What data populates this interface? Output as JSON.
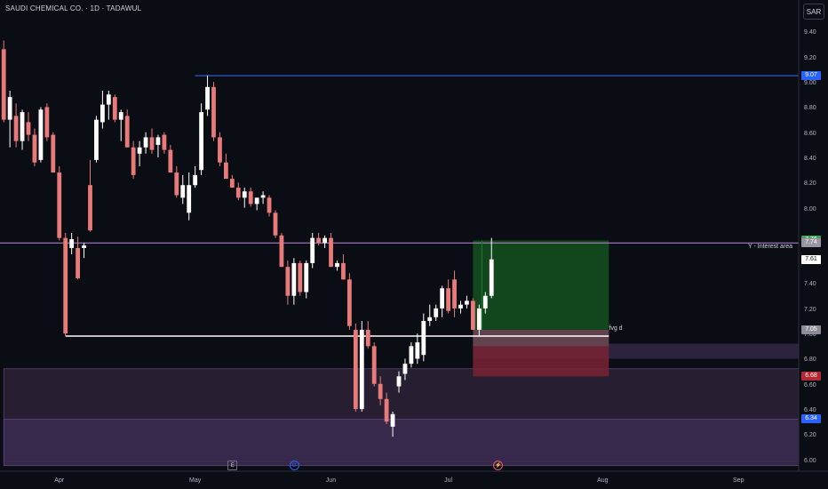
{
  "header": {
    "symbol_title": "SAUDI CHEMICAL CO. · 1D · TADAWUL",
    "currency": "SAR"
  },
  "colors": {
    "background": "#0b0d14",
    "bull": "#ffffff",
    "bear": "#e87a7a",
    "resistance_line": "#3d6df2",
    "interest_line": "#b98ad8",
    "support_line": "#ffffff",
    "target_zone": "#14521f",
    "stop_zone": "#7a2334",
    "demand_zone": "#2a2035",
    "last_price_badge": "#ffffff",
    "target_badge": "#3aa35a",
    "stop_badge": "#b22833",
    "blue_badge": "#2962ff"
  },
  "y_axis_labels": [
    "9.40",
    "9.20",
    "9.00",
    "8.80",
    "8.60",
    "8.40",
    "8.20",
    "8.00",
    "7.40",
    "7.20",
    "7.00",
    "6.80",
    "6.60",
    "6.40",
    "6.20",
    "6.00"
  ],
  "price_badges": [
    {
      "value": "9.07",
      "price": 9.07,
      "bg": "#2962ff",
      "color": "#ffffff"
    },
    {
      "value": "7.76",
      "price": 7.76,
      "bg": "#3aa35a",
      "color": "#ffffff"
    },
    {
      "value": "7.74",
      "price": 7.74,
      "bg": "#9a95a0",
      "color": "#ffffff"
    },
    {
      "value": "7.61",
      "price": 7.61,
      "bg": "#ffffff",
      "color": "#111111"
    },
    {
      "value": "7.05",
      "price": 7.05,
      "bg": "#8a8d95",
      "color": "#ffffff"
    },
    {
      "value": "6.68",
      "price": 6.68,
      "bg": "#b22833",
      "color": "#ffffff"
    },
    {
      "value": "6.34",
      "price": 6.34,
      "bg": "#2962ff",
      "color": "#ffffff"
    }
  ],
  "x_axis_labels": [
    {
      "label": "Apr",
      "day": 9
    },
    {
      "label": "May",
      "day": 31
    },
    {
      "label": "Jun",
      "day": 53
    },
    {
      "label": "Jul",
      "day": 72
    },
    {
      "label": "Aug",
      "day": 97
    },
    {
      "label": "Sep",
      "day": 119
    }
  ],
  "annotations": {
    "interest_area": "Y - Interest area",
    "fvg": "fvg d"
  },
  "events": [
    {
      "type": "e",
      "glyph": "E",
      "day": 37
    },
    {
      "type": "d",
      "glyph": "D",
      "day": 47
    },
    {
      "type": "s",
      "glyph": "⚡",
      "day": 80
    }
  ],
  "drawings": {
    "resistance": {
      "price": 9.07,
      "from_day": 31
    },
    "interest": {
      "price": 7.74
    },
    "support": {
      "price": 7.0,
      "from_day": 10,
      "to_day": 98
    },
    "target_zone": {
      "top": 7.76,
      "bottom": 7.05,
      "from_day": 76,
      "to_day": 98
    },
    "stop_zone": {
      "top": 7.05,
      "bottom": 6.68,
      "from_day": 76,
      "to_day": 98
    },
    "fvg_zone": {
      "top": 7.05,
      "bottom": 6.92,
      "from_day": 76,
      "to_day": 98
    },
    "demand_zone_upper": {
      "top": 6.94,
      "bottom": 6.82,
      "from_day": 76,
      "to_day": 131
    },
    "demand_zone_lower": {
      "top": 6.74,
      "bottom": 6.0,
      "from_day": 0,
      "to_day": 131
    },
    "demand_zone_bottom": {
      "top": 6.34,
      "bottom": 5.97,
      "from_day": 0,
      "to_day": 131
    }
  },
  "chart_data": {
    "type": "candlestick",
    "title": "SAUDI CHEMICAL CO. · 1D · TADAWUL",
    "ylim": [
      5.95,
      9.5
    ],
    "x": "trading day index",
    "candles": [
      [
        9.28,
        9.35,
        8.7,
        8.72
      ],
      [
        8.72,
        8.95,
        8.5,
        8.9
      ],
      [
        8.75,
        8.85,
        8.5,
        8.55
      ],
      [
        8.55,
        8.8,
        8.48,
        8.78
      ],
      [
        8.7,
        8.78,
        8.55,
        8.6
      ],
      [
        8.6,
        8.65,
        8.35,
        8.38
      ],
      [
        8.4,
        8.82,
        8.38,
        8.8
      ],
      [
        8.82,
        8.85,
        8.55,
        8.58
      ],
      [
        8.6,
        8.62,
        8.3,
        8.3
      ],
      [
        8.3,
        8.35,
        7.76,
        7.78
      ],
      [
        7.78,
        7.82,
        7.0,
        7.02
      ],
      [
        7.7,
        7.82,
        7.65,
        7.77
      ],
      [
        7.7,
        7.79,
        7.45,
        7.46
      ],
      [
        7.7,
        7.74,
        7.62,
        7.72
      ],
      [
        8.2,
        8.4,
        7.83,
        7.84
      ],
      [
        8.4,
        8.75,
        8.38,
        8.72
      ],
      [
        8.7,
        8.95,
        8.65,
        8.84
      ],
      [
        8.84,
        8.95,
        8.72,
        8.92
      ],
      [
        8.9,
        8.92,
        8.7,
        8.72
      ],
      [
        8.72,
        8.8,
        8.55,
        8.78
      ],
      [
        8.75,
        8.8,
        8.5,
        8.5
      ],
      [
        8.5,
        8.55,
        8.25,
        8.28
      ],
      [
        8.45,
        8.55,
        8.35,
        8.5
      ],
      [
        8.5,
        8.62,
        8.45,
        8.58
      ],
      [
        8.58,
        8.65,
        8.45,
        8.48
      ],
      [
        8.52,
        8.6,
        8.42,
        8.58
      ],
      [
        8.6,
        8.62,
        8.45,
        8.48
      ],
      [
        8.48,
        8.52,
        8.3,
        8.3
      ],
      [
        8.3,
        8.35,
        8.1,
        8.12
      ],
      [
        8.1,
        8.28,
        8.05,
        8.2
      ],
      [
        7.98,
        8.3,
        7.92,
        8.2
      ],
      [
        8.2,
        8.35,
        8.18,
        8.28
      ],
      [
        8.32,
        8.85,
        8.28,
        8.78
      ],
      [
        8.8,
        9.07,
        8.75,
        8.98
      ],
      [
        8.98,
        9.02,
        8.55,
        8.58
      ],
      [
        8.58,
        8.62,
        8.35,
        8.38
      ],
      [
        8.38,
        8.45,
        8.25,
        8.25
      ],
      [
        8.25,
        8.28,
        8.18,
        8.18
      ],
      [
        8.18,
        8.22,
        8.08,
        8.1
      ],
      [
        8.1,
        8.18,
        8.02,
        8.15
      ],
      [
        8.15,
        8.18,
        8.03,
        8.05
      ],
      [
        8.05,
        8.1,
        8.0,
        8.1
      ],
      [
        8.1,
        8.15,
        8.05,
        8.12
      ],
      [
        8.1,
        8.12,
        7.95,
        7.98
      ],
      [
        7.98,
        8.0,
        7.78,
        7.8
      ],
      [
        7.8,
        7.82,
        7.55,
        7.55
      ],
      [
        7.55,
        7.6,
        7.25,
        7.32
      ],
      [
        7.32,
        7.62,
        7.25,
        7.58
      ],
      [
        7.58,
        7.6,
        7.32,
        7.35
      ],
      [
        7.35,
        7.6,
        7.3,
        7.58
      ],
      [
        7.58,
        7.82,
        7.54,
        7.78
      ],
      [
        7.78,
        7.82,
        7.72,
        7.74
      ],
      [
        7.74,
        7.8,
        7.7,
        7.78
      ],
      [
        7.78,
        7.82,
        7.55,
        7.55
      ],
      [
        7.55,
        7.6,
        7.52,
        7.58
      ],
      [
        7.58,
        7.65,
        7.45,
        7.45
      ],
      [
        7.45,
        7.5,
        7.05,
        7.08
      ],
      [
        7.05,
        7.1,
        6.4,
        6.42
      ],
      [
        6.42,
        7.12,
        6.4,
        7.05
      ],
      [
        7.05,
        7.12,
        6.9,
        6.92
      ],
      [
        6.92,
        6.95,
        6.6,
        6.62
      ],
      [
        6.62,
        6.68,
        6.45,
        6.5
      ],
      [
        6.5,
        6.55,
        6.3,
        6.32
      ],
      [
        6.28,
        6.4,
        6.2,
        6.38
      ],
      [
        6.6,
        6.72,
        6.55,
        6.68
      ],
      [
        6.7,
        6.82,
        6.65,
        6.78
      ],
      [
        6.78,
        6.95,
        6.75,
        6.92
      ],
      [
        6.82,
        7.02,
        6.78,
        6.95
      ],
      [
        6.85,
        7.18,
        6.8,
        7.12
      ],
      [
        7.12,
        7.25,
        7.08,
        7.15
      ],
      [
        7.15,
        7.25,
        7.12,
        7.22
      ],
      [
        7.22,
        7.4,
        7.15,
        7.38
      ],
      [
        7.38,
        7.45,
        7.18,
        7.2
      ],
      [
        7.45,
        7.52,
        7.15,
        7.22
      ],
      [
        7.22,
        7.28,
        7.18,
        7.25
      ],
      [
        7.25,
        7.32,
        7.22,
        7.28
      ],
      [
        7.28,
        7.3,
        7.05,
        7.05
      ],
      [
        7.05,
        7.25,
        7.0,
        7.22
      ],
      [
        7.22,
        7.35,
        7.18,
        7.32
      ],
      [
        7.32,
        7.78,
        7.3,
        7.61
      ]
    ]
  }
}
